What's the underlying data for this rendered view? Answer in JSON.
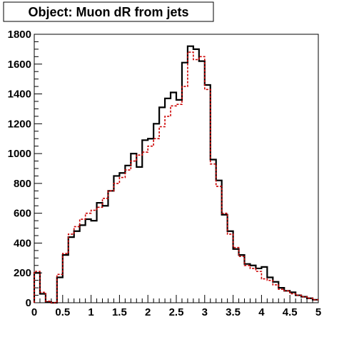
{
  "chart_data": {
    "type": "line",
    "title": "Object: Muon dR from jets",
    "xlabel": "",
    "ylabel": "",
    "xlim": [
      0,
      5
    ],
    "ylim": [
      0,
      1800
    ],
    "x_ticks": [
      "0",
      "0.5",
      "1",
      "1.5",
      "2",
      "2.5",
      "3",
      "3.5",
      "4",
      "4.5",
      "5"
    ],
    "y_ticks": [
      "0",
      "200",
      "400",
      "600",
      "800",
      "1000",
      "1200",
      "1400",
      "1600",
      "1800"
    ],
    "bin_edges": [
      0.0,
      0.1,
      0.2,
      0.3,
      0.4,
      0.5,
      0.6,
      0.7,
      0.8,
      0.9,
      1.0,
      1.1,
      1.2,
      1.3,
      1.4,
      1.5,
      1.6,
      1.7,
      1.8,
      1.9,
      2.0,
      2.1,
      2.2,
      2.3,
      2.4,
      2.5,
      2.6,
      2.7,
      2.8,
      2.9,
      3.0,
      3.1,
      3.2,
      3.3,
      3.4,
      3.5,
      3.6,
      3.7,
      3.8,
      3.9,
      4.0,
      4.1,
      4.2,
      4.3,
      4.4,
      4.5,
      4.6,
      4.7,
      4.8,
      4.9,
      5.0
    ],
    "grid": false,
    "legend": "none",
    "series": [
      {
        "style": "solid",
        "color": "#000000",
        "values": [
          200,
          60,
          5,
          0,
          170,
          320,
          440,
          480,
          520,
          560,
          550,
          670,
          650,
          750,
          850,
          870,
          920,
          1000,
          910,
          1090,
          1100,
          1200,
          1310,
          1370,
          1410,
          1360,
          1610,
          1720,
          1700,
          1620,
          1460,
          960,
          820,
          590,
          480,
          360,
          320,
          260,
          250,
          230,
          240,
          170,
          140,
          100,
          80,
          70,
          50,
          40,
          30,
          20
        ]
      },
      {
        "style": "dashed",
        "color": "#cc0000",
        "values": [
          210,
          70,
          10,
          0,
          190,
          330,
          460,
          510,
          560,
          600,
          620,
          640,
          700,
          750,
          800,
          840,
          890,
          950,
          990,
          1010,
          1050,
          1100,
          1180,
          1250,
          1320,
          1330,
          1450,
          1680,
          1630,
          1650,
          1430,
          930,
          780,
          600,
          460,
          370,
          310,
          250,
          230,
          210,
          160,
          150,
          120,
          90,
          80,
          60,
          50,
          40,
          30,
          20
        ]
      }
    ]
  }
}
